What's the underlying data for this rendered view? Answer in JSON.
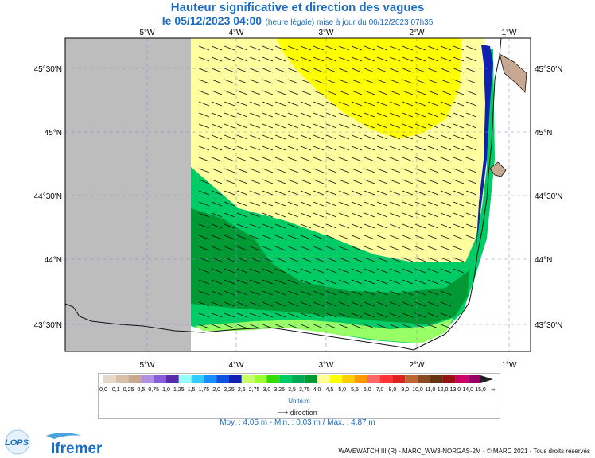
{
  "header": {
    "title": "Hauteur significative et direction des vagues",
    "date_line": "le 05/12/2023 04:00",
    "update_note": "(heure légale) mise à jour du 06/12/2023 07h35"
  },
  "map": {
    "lon_ticks": [
      "5°W",
      "4°W",
      "3°W",
      "2°W",
      "1°W"
    ],
    "lat_ticks": [
      "45°30'N",
      "45°N",
      "44°30'N",
      "44°N",
      "43°30'N"
    ],
    "zones": [
      {
        "name": "hs-0.0",
        "color": "#bdbdbd"
      },
      {
        "name": "hs-4.5-5.0",
        "color": "#ffffa0"
      },
      {
        "name": "hs-5.0-5.5",
        "color": "#ffff00"
      },
      {
        "name": "hs-3.25-3.5",
        "color": "#00cc66"
      },
      {
        "name": "hs-3.75-4.0",
        "color": "#009933"
      },
      {
        "name": "hs-2.75-3.0",
        "color": "#99ff66"
      }
    ],
    "land_color": "#ffffff"
  },
  "legend": {
    "labels": [
      "0,0",
      "0,1",
      "0,25",
      "0,5",
      "0,75",
      "1,0",
      "1,25",
      "1,5",
      "1,75",
      "2,0",
      "2,25",
      "2,5",
      "2,75",
      "3,0",
      "3,25",
      "3,5",
      "3,75",
      "4,0",
      "4,5",
      "5,0",
      "5,5",
      "6,0",
      "7,0",
      "8,0",
      "9,0",
      "10,0",
      "11,0",
      "12,0",
      "13,0",
      "14,0",
      "15,0",
      "∞"
    ],
    "colors": [
      "#e8d8c8",
      "#d8c0a8",
      "#c8a890",
      "#b090e0",
      "#8a5cd6",
      "#5a2aa8",
      "#99ffff",
      "#33ccff",
      "#1a90ff",
      "#1050e0",
      "#1020b0",
      "#c8ff66",
      "#99ff33",
      "#33dd00",
      "#00cc66",
      "#00aa55",
      "#009933",
      "#ffff99",
      "#ffff00",
      "#ffcc00",
      "#ff9900",
      "#ff6666",
      "#ff3333",
      "#dd2222",
      "#bb6633",
      "#8a4a20",
      "#663311",
      "#991111",
      "#cc0066",
      "#990066",
      "#222222"
    ],
    "unit": "Unité:m",
    "direction_label": "direction",
    "stats": "Moy. : 4,05 m   -   Min. : 0,03 m / Max. : 4,87 m"
  },
  "footer": {
    "credit": "WAVEWATCH III (R) - MARC_WW3-NORGAS-2M - © MARC 2021 - Tous droits réservés",
    "logo_lops": "LOPS",
    "logo_ifremer": "Ifremer"
  }
}
